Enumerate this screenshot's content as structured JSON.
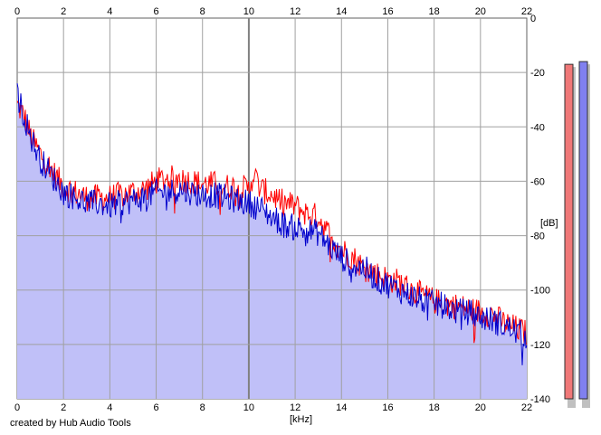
{
  "chart_data": {
    "type": "area",
    "xlabel": "[kHz]",
    "ylabel": "[dB]",
    "xlim": [
      0,
      22
    ],
    "ylim": [
      -140,
      0
    ],
    "x_ticks": [
      "0",
      "2",
      "4",
      "6",
      "8",
      "10",
      "12",
      "14",
      "16",
      "18",
      "20",
      "22"
    ],
    "y_ticks": [
      "0",
      "-20",
      "-40",
      "-60",
      "-80",
      "-100",
      "-120",
      "-140"
    ],
    "grid": true,
    "series": [
      {
        "color": "#ff0000",
        "x": [
          0,
          0.3,
          0.6,
          1,
          1.5,
          2,
          2.5,
          3,
          3.5,
          4,
          4.5,
          5,
          5.5,
          6,
          6.5,
          7,
          7.5,
          8,
          8.5,
          9,
          9.5,
          10,
          10.2,
          10.5,
          11,
          11.5,
          12,
          12.5,
          13,
          13.5,
          14,
          14.5,
          15,
          15.5,
          16,
          16.5,
          17,
          17.5,
          18,
          18.5,
          19,
          19.5,
          20,
          20.5,
          21,
          21.5,
          22
        ],
        "values": [
          -32,
          -36,
          -44,
          -50,
          -56,
          -62,
          -64,
          -66,
          -66,
          -66,
          -65,
          -64,
          -63,
          -60,
          -59,
          -59,
          -60,
          -61,
          -61,
          -62,
          -62,
          -63,
          -57,
          -63,
          -65,
          -68,
          -69,
          -72,
          -73,
          -80,
          -85,
          -88,
          -92,
          -94,
          -96,
          -97,
          -100,
          -102,
          -104,
          -105,
          -106,
          -107,
          -108,
          -109,
          -112,
          -114,
          -116
        ]
      },
      {
        "color": "#0000cc",
        "x": [
          0,
          0.3,
          0.6,
          1,
          1.5,
          2,
          2.5,
          3,
          3.5,
          4,
          4.5,
          5,
          5.5,
          6,
          6.5,
          7,
          7.5,
          8,
          8.5,
          9,
          9.5,
          10,
          10.5,
          11,
          11.5,
          12,
          12.5,
          13,
          13.5,
          14,
          14.5,
          15,
          15.5,
          16,
          16.5,
          17,
          17.5,
          18,
          18.5,
          19,
          19.5,
          20,
          20.5,
          21,
          21.5,
          22
        ],
        "values": [
          -28,
          -36,
          -44,
          -52,
          -58,
          -64,
          -66,
          -68,
          -68,
          -69,
          -68,
          -67,
          -66,
          -64,
          -64,
          -63,
          -64,
          -65,
          -65,
          -66,
          -67,
          -68,
          -70,
          -73,
          -76,
          -77,
          -78,
          -79,
          -84,
          -88,
          -91,
          -92,
          -96,
          -98,
          -100,
          -102,
          -104,
          -105,
          -106,
          -108,
          -108,
          -110,
          -111,
          -113,
          -115,
          -117
        ]
      }
    ],
    "level_meters": [
      {
        "color": "#f07878",
        "level_db": -17
      },
      {
        "color": "#8080f0",
        "level_db": -16
      }
    ],
    "colors": {
      "fill": "#c0c0f8",
      "grid": "#a0a0a0",
      "grid_major": "#808080"
    }
  },
  "footer": {
    "credit": "created by Hub Audio Tools"
  }
}
